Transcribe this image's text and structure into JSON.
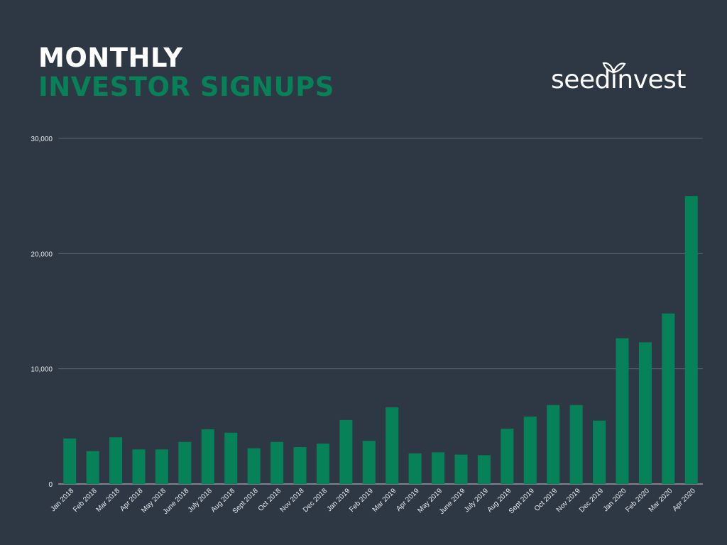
{
  "header": {
    "title_line1": "MONTHLY",
    "title_line2": "INVESTOR SIGNUPS"
  },
  "logo": {
    "text": "seedinvest",
    "color": "#ffffff"
  },
  "colors": {
    "background": "#2e3844",
    "bar": "#078158",
    "grid": "#5b6570",
    "text": "#e8ecef"
  },
  "chart_data": {
    "type": "bar",
    "title": "MONTHLY INVESTOR SIGNUPS",
    "xlabel": "",
    "ylabel": "",
    "ylim": [
      0,
      30000
    ],
    "yticks": [
      0,
      10000,
      20000,
      30000
    ],
    "ytick_labels": [
      "0",
      "10,000",
      "20,000",
      "30,000"
    ],
    "grid": true,
    "categories": [
      "Jan 2018",
      "Feb 2018",
      "Mar 2018",
      "Apr 2018",
      "May 2018",
      "June 2018",
      "July 2018",
      "Aug 2018",
      "Sept 2018",
      "Oct 2018",
      "Nov 2018",
      "Dec 2018",
      "Jan 2019",
      "Feb 2019",
      "Mar 2019",
      "Apr 2019",
      "May 2019",
      "June 2019",
      "July 2019",
      "Aug 2019",
      "Sept 2019",
      "Oct 2019",
      "Nov 2019",
      "Dec 2019",
      "Jan 2020",
      "Feb 2020",
      "Mar 2020",
      "Apr 2020"
    ],
    "values": [
      3950,
      2850,
      4050,
      3000,
      3000,
      3650,
      4750,
      4450,
      3100,
      3650,
      3200,
      3500,
      5550,
      3750,
      6650,
      2650,
      2750,
      2550,
      2500,
      4800,
      5850,
      6850,
      6850,
      5500,
      12650,
      12300,
      14800,
      25000
    ]
  }
}
